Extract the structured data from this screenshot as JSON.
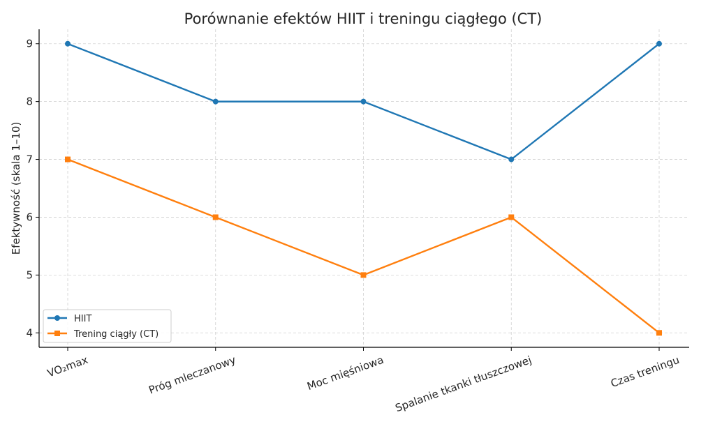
{
  "chart_data": {
    "type": "line",
    "title": "Porównanie efektów HIIT i treningu ciągłego (CT)",
    "xlabel": "",
    "ylabel": "Efektywność (skala 1–10)",
    "categories": [
      "VO₂max",
      "Próg mleczanowy",
      "Moc mięśniowa",
      "Spalanie tkanki tłuszczowej",
      "Czas treningu"
    ],
    "ylim": [
      3.75,
      9.25
    ],
    "yticks": [
      4,
      5,
      6,
      7,
      8,
      9
    ],
    "grid": true,
    "legend_position": "lower-left",
    "series": [
      {
        "name": "HIIT",
        "values": [
          9,
          8,
          8,
          7,
          9
        ],
        "color": "#1f77b4",
        "marker": "circle"
      },
      {
        "name": "Trening ciągły (CT)",
        "values": [
          7,
          6,
          5,
          6,
          4
        ],
        "color": "#ff7f0e",
        "marker": "square"
      }
    ]
  }
}
